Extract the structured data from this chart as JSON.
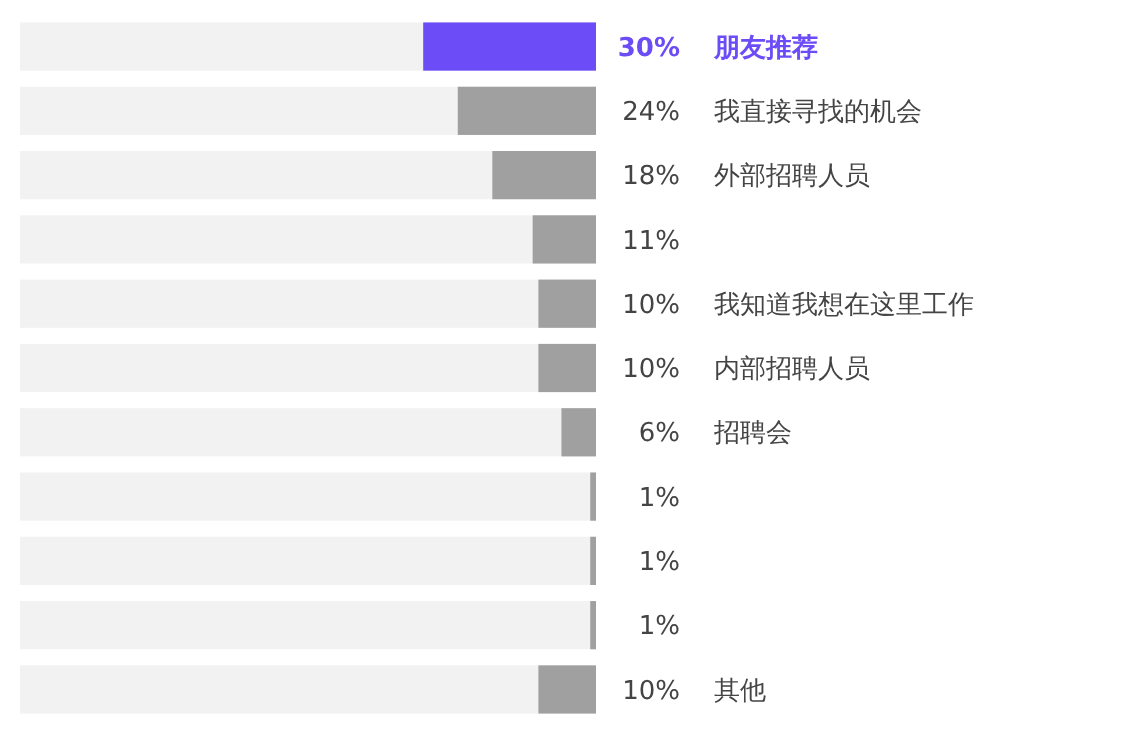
{
  "chart_data": {
    "type": "bar",
    "orientation": "horizontal",
    "categories": [
      "朋友推荐",
      "我直接寻找的机会",
      "外部招聘人员",
      null,
      "我知道我想在这里工作",
      "内部招聘人员",
      "招聘会",
      null,
      null,
      null,
      "其他"
    ],
    "values": [
      30,
      24,
      18,
      11,
      10,
      10,
      6,
      1,
      1,
      1,
      10
    ],
    "colors": [
      "#6b4cf6",
      "#a0a0a0",
      "#a0a0a0",
      "#a0a0a0",
      "#a0a0a0",
      "#a0a0a0",
      "#a0a0a0",
      "#a0a0a0",
      "#a0a0a0",
      "#a0a0a0",
      "#a0a0a0"
    ],
    "value_labels": [
      "30%",
      "24%",
      "18%",
      "11%",
      "10%",
      "10%",
      "6%",
      "1%",
      "1%",
      "1%",
      "10%"
    ],
    "xlim": [
      100,
      0
    ]
  }
}
